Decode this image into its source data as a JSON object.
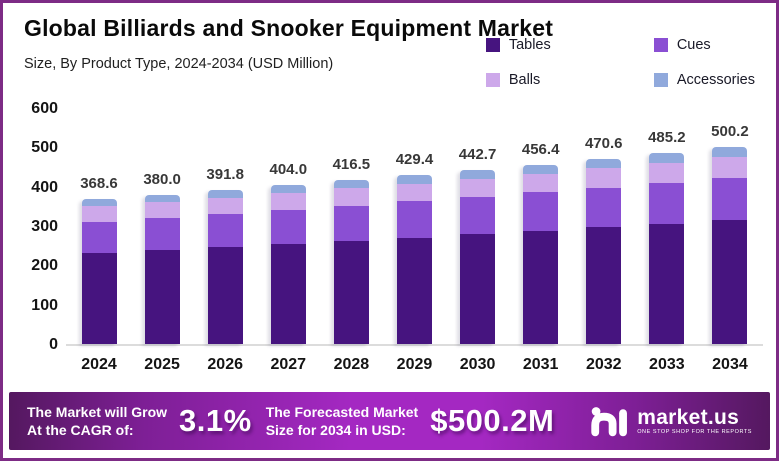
{
  "header": {
    "title": "Global Billiards and Snooker Equipment Market",
    "subtitle": "Size, By Product Type, 2024-2034 (USD Million)"
  },
  "chart_data": {
    "type": "bar",
    "stacked": true,
    "title": "Global Billiards and Snooker Equipment Market",
    "subtitle": "Size, By Product Type, 2024-2034 (USD Million)",
    "categories": [
      "2024",
      "2025",
      "2026",
      "2027",
      "2028",
      "2029",
      "2030",
      "2031",
      "2032",
      "2033",
      "2034"
    ],
    "totals": [
      "368.6",
      "380.0",
      "391.8",
      "404.0",
      "416.5",
      "429.4",
      "442.7",
      "456.4",
      "470.6",
      "485.2",
      "500.2"
    ],
    "series": [
      {
        "name": "Tables",
        "color": "#46147F",
        "values": [
          232.2,
          239.4,
          246.8,
          254.5,
          262.4,
          270.5,
          278.9,
          287.5,
          296.5,
          305.7,
          315.1
        ]
      },
      {
        "name": "Cues",
        "color": "#8A4FD3",
        "values": [
          79.3,
          81.7,
          84.2,
          86.9,
          89.5,
          92.3,
          95.2,
          98.1,
          101.2,
          104.3,
          107.5
        ]
      },
      {
        "name": "Balls",
        "color": "#CDA8EA",
        "values": [
          38.7,
          39.9,
          41.2,
          42.4,
          43.7,
          45.1,
          46.5,
          47.9,
          49.4,
          50.9,
          52.5
        ]
      },
      {
        "name": "Accessories",
        "color": "#90A9DC",
        "values": [
          18.4,
          19.0,
          19.6,
          20.2,
          20.9,
          21.5,
          22.1,
          22.9,
          23.5,
          24.3,
          25.1
        ]
      }
    ],
    "ylim": [
      0,
      600
    ],
    "yticks": [
      0,
      100,
      200,
      300,
      400,
      500,
      600
    ],
    "xlabel": "",
    "ylabel": "",
    "grid": false,
    "legend_position": "top-right"
  },
  "banner": {
    "cagr_label_line1": "The Market will Grow",
    "cagr_label_line2": "At the CAGR of:",
    "cagr_value": "3.1%",
    "forecast_label_line1": "The Forecasted Market",
    "forecast_label_line2": "Size for 2034 in USD:",
    "forecast_value": "$500.2M",
    "logo_text": "market.us",
    "logo_tagline": "ONE STOP SHOP FOR THE REPORTS"
  },
  "colors": {
    "border": "#7D2B85",
    "banner_dark": "#54185F",
    "banner_bright": "#A428C2",
    "axis_line": "#DCDCDC",
    "tables": "#46147F",
    "cues": "#8A4FD3",
    "balls": "#CDA8EA",
    "accessories": "#90A9DC"
  }
}
